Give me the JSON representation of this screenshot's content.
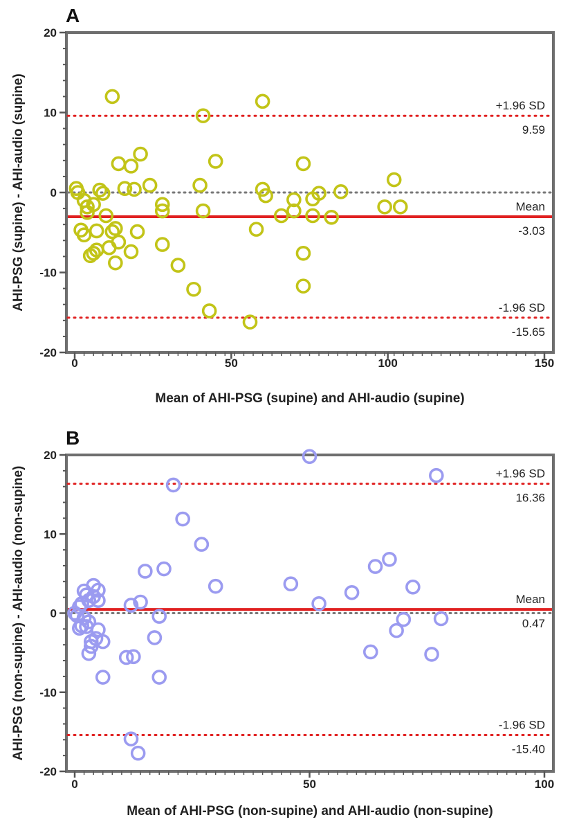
{
  "chart_data": [
    {
      "type": "scatter",
      "panel_label": "A",
      "xlabel": "Mean of AHI-PSG (supine) and AHI-audio (supine)",
      "ylabel": "AHI-PSG (supine) - AHI-audio (supine)",
      "xlim": [
        0,
        150
      ],
      "ylim": [
        -20,
        20
      ],
      "x_ticks": [
        0,
        50,
        100,
        150
      ],
      "y_ticks": [
        -20,
        -10,
        0,
        10,
        20
      ],
      "marker_color": "#c2c418",
      "zero_line": 0,
      "lines": [
        {
          "name": "+1.96 SD",
          "label": "+1.96 SD",
          "value_label": "9.59",
          "y": 9.59,
          "style": "dotted",
          "color": "#e02020"
        },
        {
          "name": "Mean",
          "label": "Mean",
          "value_label": "-3.03",
          "y": -3.03,
          "style": "solid",
          "color": "#e02020"
        },
        {
          "name": "-1.96 SD",
          "label": "-1.96 SD",
          "value_label": "-15.65",
          "y": -15.65,
          "style": "dotted",
          "color": "#e02020"
        }
      ],
      "points": [
        [
          0.5,
          0.5
        ],
        [
          1,
          0
        ],
        [
          3,
          -1
        ],
        [
          4,
          -1.8
        ],
        [
          4,
          -2.5
        ],
        [
          2,
          -4.7
        ],
        [
          3,
          -5.3
        ],
        [
          5,
          -7.9
        ],
        [
          6,
          -7.6
        ],
        [
          7,
          -7.2
        ],
        [
          7,
          -4.8
        ],
        [
          6,
          -1.5
        ],
        [
          8,
          0.3
        ],
        [
          9,
          -0.1
        ],
        [
          10,
          -2.9
        ],
        [
          11,
          -6.9
        ],
        [
          12,
          12
        ],
        [
          12,
          -4.9
        ],
        [
          13,
          -4.5
        ],
        [
          13,
          -8.8
        ],
        [
          14,
          -6.2
        ],
        [
          14,
          3.6
        ],
        [
          16,
          0.5
        ],
        [
          18,
          3.3
        ],
        [
          18,
          -7.4
        ],
        [
          19,
          0.4
        ],
        [
          20,
          -4.9
        ],
        [
          21,
          4.8
        ],
        [
          24,
          0.9
        ],
        [
          28,
          -1.5
        ],
        [
          28,
          -2.3
        ],
        [
          28,
          -6.5
        ],
        [
          33,
          -9.1
        ],
        [
          38,
          -12.1
        ],
        [
          40,
          0.9
        ],
        [
          41,
          -2.3
        ],
        [
          41,
          9.6
        ],
        [
          43,
          -14.8
        ],
        [
          45,
          3.9
        ],
        [
          56,
          -16.2
        ],
        [
          58,
          -4.6
        ],
        [
          60,
          11.4
        ],
        [
          60,
          0.4
        ],
        [
          61,
          -0.4
        ],
        [
          66,
          -2.9
        ],
        [
          70,
          -0.9
        ],
        [
          70,
          -2.3
        ],
        [
          73,
          3.6
        ],
        [
          73,
          -7.6
        ],
        [
          73,
          -11.7
        ],
        [
          76,
          -0.8
        ],
        [
          76,
          -2.9
        ],
        [
          78,
          -0.1
        ],
        [
          82,
          -3.1
        ],
        [
          85,
          0.1
        ],
        [
          99,
          -1.8
        ],
        [
          102,
          1.6
        ],
        [
          104,
          -1.8
        ]
      ]
    },
    {
      "type": "scatter",
      "panel_label": "B",
      "xlabel": "Mean of AHI-PSG (non-supine) and AHI-audio (non-supine)",
      "ylabel": "AHI-PSG (non-supine) - AHI-audio (non-supine)",
      "xlim": [
        0,
        100
      ],
      "ylim": [
        -20,
        20
      ],
      "x_ticks": [
        0,
        50,
        100
      ],
      "y_ticks": [
        -20,
        -10,
        0,
        10,
        20
      ],
      "marker_color": "#9b9bf0",
      "zero_line": 0,
      "lines": [
        {
          "name": "+1.96 SD",
          "label": "+1.96 SD",
          "value_label": "16.36",
          "y": 16.36,
          "style": "dotted",
          "color": "#e02020"
        },
        {
          "name": "Mean",
          "label": "Mean",
          "value_label": "0.47",
          "y": 0.47,
          "style": "solid",
          "color": "#e02020"
        },
        {
          "name": "-1.96 SD",
          "label": "-1.96 SD",
          "value_label": "-15.40",
          "y": -15.4,
          "style": "dotted",
          "color": "#e02020"
        }
      ],
      "points": [
        [
          0,
          0
        ],
        [
          0.5,
          -0.3
        ],
        [
          1,
          0.8
        ],
        [
          1,
          -1.9
        ],
        [
          1.5,
          1.2
        ],
        [
          1.5,
          -1.6
        ],
        [
          2,
          -0.6
        ],
        [
          2,
          2.8
        ],
        [
          2.5,
          2.3
        ],
        [
          2.5,
          -1.7
        ],
        [
          3,
          1.6
        ],
        [
          3,
          -1.1
        ],
        [
          3,
          -5.1
        ],
        [
          3.5,
          -4.2
        ],
        [
          3.5,
          -3.6
        ],
        [
          4,
          3.5
        ],
        [
          4,
          2.1
        ],
        [
          4.5,
          -3.2
        ],
        [
          5,
          2.9
        ],
        [
          5,
          1.6
        ],
        [
          5,
          -2.1
        ],
        [
          6,
          -3.6
        ],
        [
          6,
          -8.1
        ],
        [
          11,
          -5.6
        ],
        [
          12,
          1.0
        ],
        [
          12,
          -15.9
        ],
        [
          12.5,
          -5.5
        ],
        [
          13.5,
          -17.7
        ],
        [
          14,
          1.4
        ],
        [
          15,
          5.3
        ],
        [
          17,
          -3.1
        ],
        [
          18,
          -0.4
        ],
        [
          18,
          -8.1
        ],
        [
          19,
          5.6
        ],
        [
          21,
          16.2
        ],
        [
          23,
          11.9
        ],
        [
          27,
          8.7
        ],
        [
          30,
          3.4
        ],
        [
          46,
          3.7
        ],
        [
          50,
          19.8
        ],
        [
          52,
          1.2
        ],
        [
          59,
          2.6
        ],
        [
          63,
          -4.9
        ],
        [
          64,
          5.9
        ],
        [
          67,
          6.8
        ],
        [
          68.5,
          -2.2
        ],
        [
          70,
          -0.8
        ],
        [
          72,
          3.3
        ],
        [
          76,
          -5.2
        ],
        [
          77,
          17.4
        ],
        [
          78,
          -0.7
        ]
      ]
    }
  ]
}
